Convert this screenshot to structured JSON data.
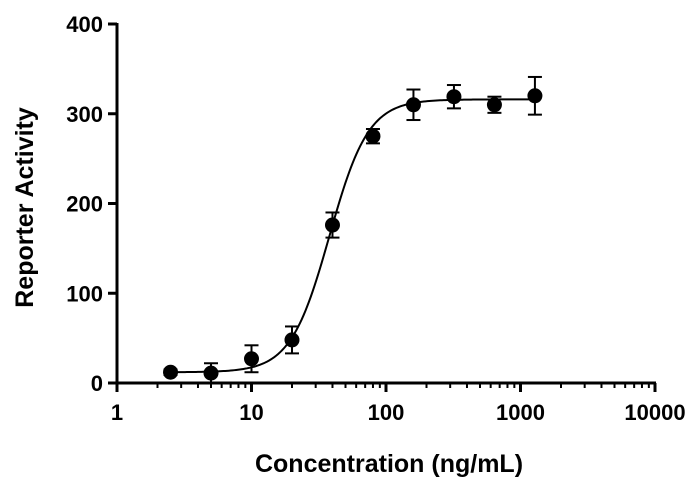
{
  "chart_data": {
    "type": "scatter",
    "title": "",
    "xlabel": "Concentration (ng/mL)",
    "ylabel": "Reporter Activity",
    "x_scale": "log",
    "xlim": [
      1,
      10000
    ],
    "ylim": [
      0,
      400
    ],
    "x_ticks": [
      1,
      10,
      100,
      1000,
      10000
    ],
    "x_tick_labels": [
      "1",
      "10",
      "100",
      "1000",
      "10000"
    ],
    "y_ticks": [
      0,
      100,
      200,
      300,
      400
    ],
    "y_tick_labels": [
      "0",
      "100",
      "200",
      "300",
      "400"
    ],
    "grid": false,
    "series": [
      {
        "name": "Reporter Activity",
        "x": [
          2.5,
          5,
          10,
          20,
          40,
          80,
          160,
          320,
          640,
          1280
        ],
        "y": [
          12,
          11,
          27,
          48,
          176,
          275,
          310,
          319,
          310,
          320
        ],
        "error": [
          3,
          11,
          15,
          15,
          14,
          8,
          17,
          13,
          9,
          21
        ]
      }
    ],
    "fit": {
      "model": "four-parameter logistic",
      "bottom": 12,
      "top": 316,
      "ec50": 38,
      "hill_slope": 3
    }
  }
}
